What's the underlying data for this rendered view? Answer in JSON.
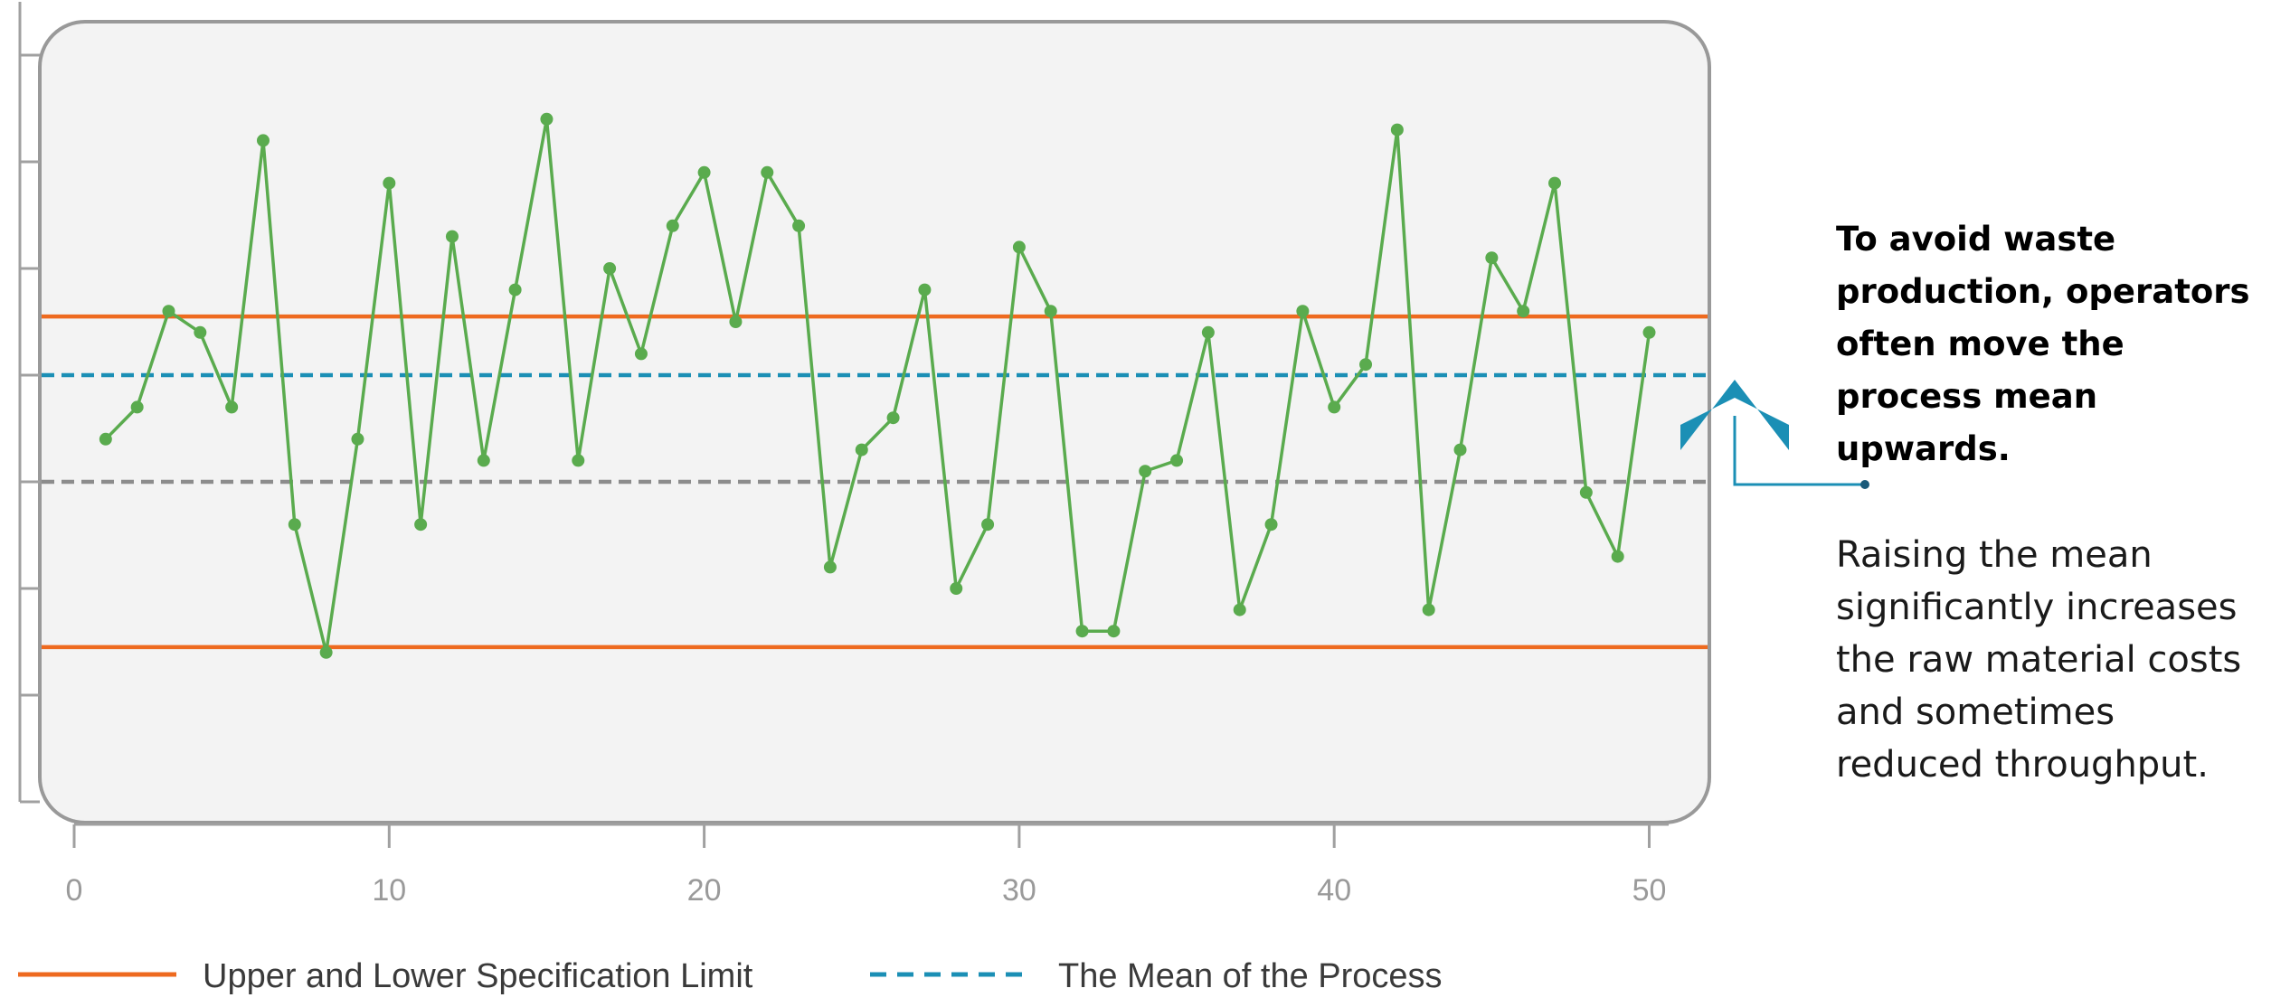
{
  "chart_data": {
    "type": "line",
    "title": "",
    "xlabel": "",
    "ylabel": "",
    "xlim": [
      0,
      52
    ],
    "ylim": [
      0,
      7.5
    ],
    "x_ticks": [
      0,
      10,
      20,
      30,
      40,
      50
    ],
    "x_tick_labels": [
      "0",
      "10",
      "20",
      "30",
      "40",
      "50"
    ],
    "y_ticks": [
      0,
      1,
      2,
      3,
      4,
      5,
      6,
      7
    ],
    "y_tick_labels_visible": false,
    "grid": false,
    "legend_position": "bottom-left",
    "series": [
      {
        "color": "#5aab4e",
        "x": [
          1,
          2,
          3,
          4,
          5,
          6,
          7,
          8,
          9,
          10,
          11,
          12,
          13,
          14,
          15,
          16,
          17,
          18,
          19,
          20,
          21,
          22,
          23,
          24,
          25,
          26,
          27,
          28,
          29,
          30,
          31,
          32,
          33,
          34,
          35,
          36,
          37,
          38,
          39,
          40,
          41,
          42,
          43,
          44,
          45,
          46,
          47,
          48,
          49,
          50
        ],
        "y": [
          3.4,
          3.7,
          4.6,
          4.4,
          3.7,
          6.2,
          2.6,
          1.4,
          3.4,
          5.8,
          2.6,
          5.3,
          3.2,
          4.8,
          6.4,
          3.2,
          5.0,
          4.2,
          5.4,
          5.9,
          4.5,
          5.9,
          5.4,
          2.2,
          3.3,
          3.6,
          4.8,
          2.0,
          2.6,
          5.2,
          4.6,
          1.6,
          1.6,
          3.1,
          3.2,
          4.4,
          1.8,
          2.6,
          4.6,
          3.7,
          4.1,
          6.3,
          1.8,
          3.3,
          5.1,
          4.6,
          5.8,
          2.9,
          2.3,
          4.4
        ]
      }
    ],
    "reference_lines": [
      {
        "name": "Upper and Lower Specification Limit",
        "y": 4.55,
        "color": "#ee6a1f",
        "style": "solid"
      },
      {
        "name": "Upper and Lower Specification Limit",
        "y": 1.45,
        "color": "#ee6a1f",
        "style": "solid"
      },
      {
        "name": "The Mean of the Process",
        "y": 4.0,
        "color": "#1b8fb5",
        "style": "dashed"
      },
      {
        "y": 3.0,
        "color": "#8c8c8c",
        "style": "dashed"
      }
    ],
    "legend": [
      {
        "label": "Upper and Lower Specification Limit",
        "color": "#ee6a1f",
        "style": "solid"
      },
      {
        "label": "The Mean of the Process",
        "color": "#1b8fb5",
        "style": "dashed"
      }
    ]
  },
  "annotation": {
    "title": "To avoid waste production, operators often move the process mean upwards.",
    "body": "Raising the mean significantly increases the raw material costs and sometimes reduced  throughput.",
    "arrow_color": "#1b8fb5",
    "arrow_icon": "chevron-up-icon"
  },
  "colors": {
    "plot_background": "#f3f3f3",
    "plot_border": "#999999",
    "axis": "#a0a0a0"
  }
}
